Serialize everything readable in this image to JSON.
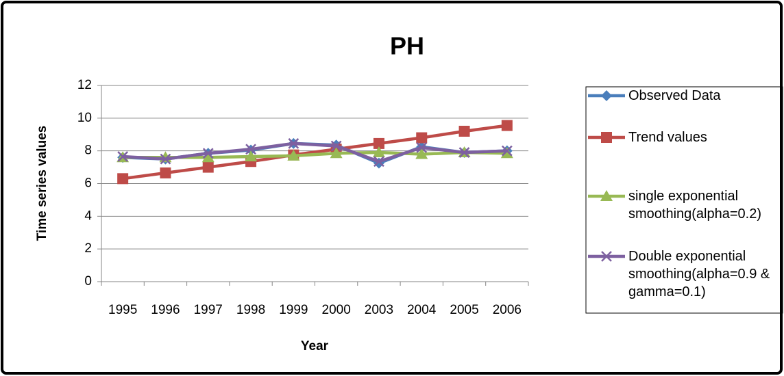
{
  "chart_data": {
    "type": "line",
    "title": "PH",
    "x_label": "Year",
    "y_label": "Time series values",
    "categories": [
      "1995",
      "1996",
      "1997",
      "1998",
      "1999",
      "2000",
      "2003",
      "2004",
      "2005",
      "2006"
    ],
    "ylim": [
      0,
      12
    ],
    "yticks": [
      0,
      2,
      4,
      6,
      8,
      10,
      12
    ],
    "grid": true,
    "legend": "right",
    "series": [
      {
        "name": "Observed Data",
        "color": "#4a7ebb",
        "marker": "diamond",
        "values": [
          7.6,
          7.5,
          7.85,
          8.05,
          8.45,
          8.35,
          7.25,
          8.25,
          7.9,
          8.0
        ]
      },
      {
        "name": "Trend values",
        "color": "#be4b48",
        "marker": "square",
        "values": [
          6.3,
          6.65,
          7.0,
          7.35,
          7.75,
          8.1,
          8.45,
          8.8,
          9.2,
          9.55
        ]
      },
      {
        "name": "single exponential smoothing(alpha=0.2)",
        "color": "#98b954",
        "marker": "triangle",
        "values": [
          7.6,
          7.6,
          7.6,
          7.65,
          7.7,
          7.85,
          7.9,
          7.8,
          7.9,
          7.85
        ]
      },
      {
        "name": "Double exponential smoothing(alpha=0.9 & gamma=0.1)",
        "color": "#7d60a0",
        "marker": "x",
        "values": [
          7.65,
          7.5,
          7.85,
          8.1,
          8.45,
          8.3,
          7.35,
          8.2,
          7.9,
          8.0
        ]
      }
    ]
  }
}
